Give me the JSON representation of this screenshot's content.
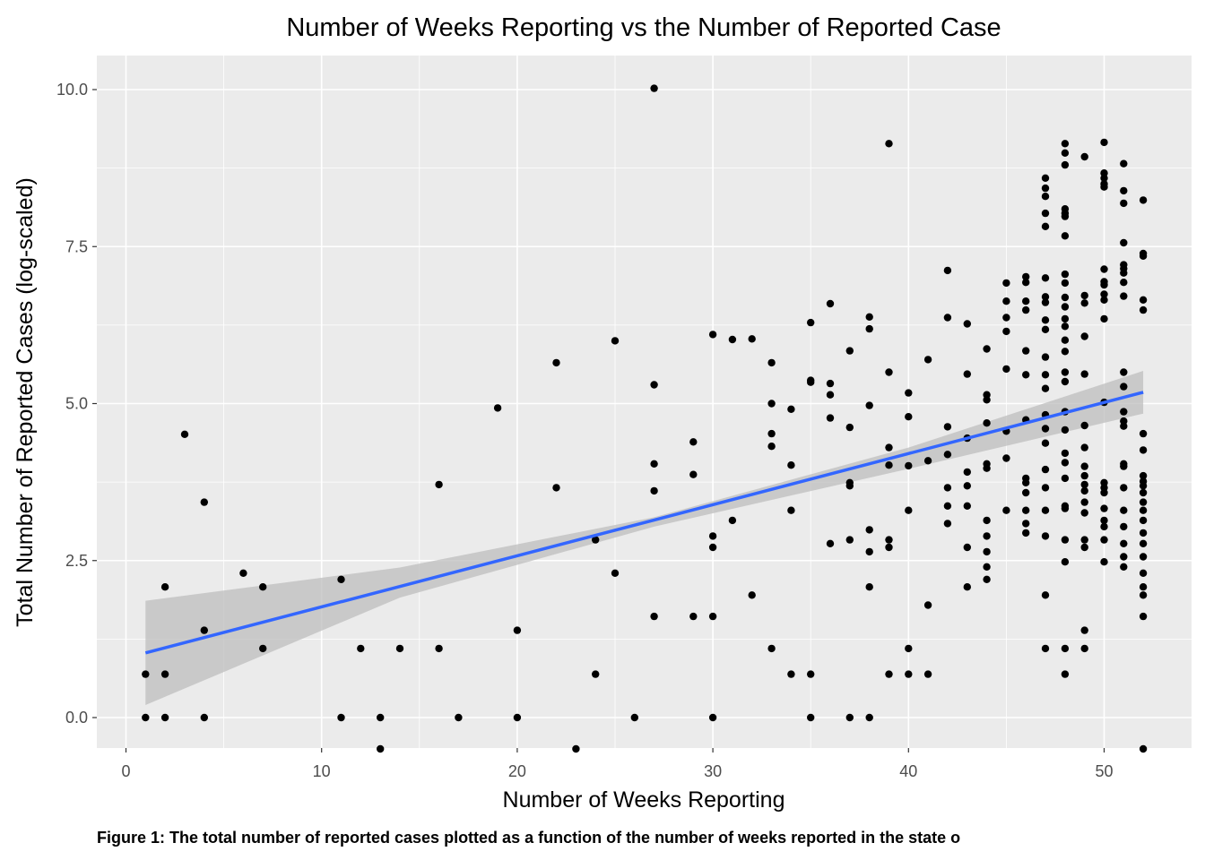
{
  "chart_data": {
    "type": "scatter",
    "title": "Number of Weeks Reporting vs the Number of Reported Case",
    "xlabel": "Number of Weeks Reporting",
    "ylabel": "Total Number of Reported Cases (log-scaled)",
    "caption": "Figure 1: The total number of reported cases plotted as a function of the number of weeks reported in the state o",
    "xlim": [
      -1.5,
      54.5
    ],
    "ylim": [
      -0.5,
      10.5
    ],
    "xticks": [
      0,
      10,
      20,
      30,
      40,
      50
    ],
    "xtick_labels": [
      "0",
      "10",
      "20",
      "30",
      "40",
      "50"
    ],
    "yticks": [
      0,
      2.5,
      5,
      7.5,
      10
    ],
    "ytick_labels": [
      "0.0",
      "2.5",
      "5.0",
      "7.5",
      "10.0"
    ],
    "grid": true,
    "legend": "none",
    "colors": {
      "panel": "#ebebeb",
      "grid": "#ffffff",
      "points": "#000000",
      "fit_line": "#3366ff",
      "confidence_band": "#bdbdbd"
    },
    "points": [
      [
        1,
        0.69
      ],
      [
        1,
        0
      ],
      [
        2,
        2.08
      ],
      [
        2,
        0.69
      ],
      [
        2,
        0
      ],
      [
        3,
        4.51
      ],
      [
        4,
        3.43
      ],
      [
        4,
        1.39
      ],
      [
        4,
        0
      ],
      [
        6,
        2.3
      ],
      [
        7,
        2.08
      ],
      [
        7,
        1.1
      ],
      [
        11,
        2.2
      ],
      [
        11,
        0
      ],
      [
        12,
        1.1
      ],
      [
        13,
        0
      ],
      [
        13,
        -0.5
      ],
      [
        14,
        1.1
      ],
      [
        16,
        3.71
      ],
      [
        16,
        1.1
      ],
      [
        17,
        0
      ],
      [
        19,
        4.93
      ],
      [
        20,
        1.39
      ],
      [
        20,
        0
      ],
      [
        22,
        5.65
      ],
      [
        22,
        3.66
      ],
      [
        23,
        -0.5
      ],
      [
        24,
        2.83
      ],
      [
        24,
        0.69
      ],
      [
        25,
        6
      ],
      [
        25,
        2.3
      ],
      [
        26,
        0
      ],
      [
        27,
        10.02
      ],
      [
        27,
        5.3
      ],
      [
        27,
        4.04
      ],
      [
        27,
        3.61
      ],
      [
        27,
        1.61
      ],
      [
        29,
        4.39
      ],
      [
        29,
        3.87
      ],
      [
        29,
        1.61
      ],
      [
        30,
        6.1
      ],
      [
        30,
        2.89
      ],
      [
        30,
        2.71
      ],
      [
        30,
        1.61
      ],
      [
        30,
        0
      ],
      [
        31,
        6.02
      ],
      [
        31,
        3.14
      ],
      [
        32,
        6.03
      ],
      [
        32,
        1.95
      ],
      [
        33,
        5.65
      ],
      [
        33,
        5
      ],
      [
        33,
        4.52
      ],
      [
        33,
        4.32
      ],
      [
        33,
        1.1
      ],
      [
        34,
        4.91
      ],
      [
        34,
        4.02
      ],
      [
        34,
        3.3
      ],
      [
        34,
        0.69
      ],
      [
        35,
        6.29
      ],
      [
        35,
        5.37
      ],
      [
        35,
        5.34
      ],
      [
        35,
        0.69
      ],
      [
        35,
        0
      ],
      [
        36,
        6.59
      ],
      [
        36,
        5.32
      ],
      [
        36,
        5.14
      ],
      [
        36,
        4.77
      ],
      [
        36,
        2.77
      ],
      [
        37,
        5.84
      ],
      [
        37,
        4.62
      ],
      [
        37,
        3.74
      ],
      [
        37,
        3.69
      ],
      [
        37,
        2.83
      ],
      [
        37,
        0
      ],
      [
        38,
        6.38
      ],
      [
        38,
        6.19
      ],
      [
        38,
        4.97
      ],
      [
        38,
        2.99
      ],
      [
        38,
        2.64
      ],
      [
        38,
        2.08
      ],
      [
        38,
        0
      ],
      [
        39,
        9.14
      ],
      [
        39,
        5.5
      ],
      [
        39,
        4.3
      ],
      [
        39,
        4.02
      ],
      [
        39,
        2.83
      ],
      [
        39,
        2.71
      ],
      [
        39,
        0.69
      ],
      [
        40,
        5.17
      ],
      [
        40,
        4.79
      ],
      [
        40,
        4.01
      ],
      [
        40,
        3.3
      ],
      [
        40,
        1.1
      ],
      [
        40,
        0.69
      ],
      [
        41,
        5.7
      ],
      [
        41,
        4.09
      ],
      [
        41,
        1.79
      ],
      [
        41,
        0.69
      ],
      [
        42,
        7.12
      ],
      [
        42,
        6.37
      ],
      [
        42,
        4.63
      ],
      [
        42,
        4.19
      ],
      [
        42,
        3.66
      ],
      [
        42,
        3.37
      ],
      [
        42,
        3.09
      ],
      [
        43,
        6.27
      ],
      [
        43,
        5.47
      ],
      [
        43,
        4.45
      ],
      [
        43,
        3.91
      ],
      [
        43,
        3.69
      ],
      [
        43,
        3.37
      ],
      [
        43,
        2.71
      ],
      [
        43,
        2.08
      ],
      [
        44,
        5.87
      ],
      [
        44,
        5.14
      ],
      [
        44,
        5.06
      ],
      [
        44,
        4.69
      ],
      [
        44,
        4.04
      ],
      [
        44,
        3.97
      ],
      [
        44,
        3.14
      ],
      [
        44,
        2.89
      ],
      [
        44,
        2.64
      ],
      [
        44,
        2.4
      ],
      [
        44,
        2.2
      ],
      [
        45,
        6.92
      ],
      [
        45,
        6.63
      ],
      [
        45,
        6.37
      ],
      [
        45,
        6.15
      ],
      [
        45,
        5.55
      ],
      [
        45,
        4.56
      ],
      [
        45,
        4.13
      ],
      [
        45,
        3.3
      ],
      [
        46,
        7.02
      ],
      [
        46,
        6.93
      ],
      [
        46,
        6.63
      ],
      [
        46,
        6.49
      ],
      [
        46,
        5.84
      ],
      [
        46,
        5.46
      ],
      [
        46,
        4.74
      ],
      [
        46,
        3.81
      ],
      [
        46,
        3.74
      ],
      [
        46,
        3.58
      ],
      [
        46,
        3.3
      ],
      [
        46,
        3.09
      ],
      [
        46,
        2.94
      ],
      [
        47,
        8.59
      ],
      [
        47,
        8.43
      ],
      [
        47,
        8.3
      ],
      [
        47,
        8.03
      ],
      [
        47,
        7.82
      ],
      [
        47,
        7
      ],
      [
        47,
        6.7
      ],
      [
        47,
        6.61
      ],
      [
        47,
        6.33
      ],
      [
        47,
        6.18
      ],
      [
        47,
        5.74
      ],
      [
        47,
        5.46
      ],
      [
        47,
        5.24
      ],
      [
        47,
        4.82
      ],
      [
        47,
        4.6
      ],
      [
        47,
        4.37
      ],
      [
        47,
        3.95
      ],
      [
        47,
        3.66
      ],
      [
        47,
        3.3
      ],
      [
        47,
        2.89
      ],
      [
        47,
        1.95
      ],
      [
        47,
        1.1
      ],
      [
        48,
        9.14
      ],
      [
        48,
        8.99
      ],
      [
        48,
        8.8
      ],
      [
        48,
        8.1
      ],
      [
        48,
        8.03
      ],
      [
        48,
        7.98
      ],
      [
        48,
        7.67
      ],
      [
        48,
        7.06
      ],
      [
        48,
        6.92
      ],
      [
        48,
        6.69
      ],
      [
        48,
        6.54
      ],
      [
        48,
        6.35
      ],
      [
        48,
        6.23
      ],
      [
        48,
        6.01
      ],
      [
        48,
        5.83
      ],
      [
        48,
        5.5
      ],
      [
        48,
        5.35
      ],
      [
        48,
        4.87
      ],
      [
        48,
        4.58
      ],
      [
        48,
        4.21
      ],
      [
        48,
        4.06
      ],
      [
        48,
        3.81
      ],
      [
        48,
        3.37
      ],
      [
        48,
        3.33
      ],
      [
        48,
        2.83
      ],
      [
        48,
        2.48
      ],
      [
        48,
        1.1
      ],
      [
        48,
        0.69
      ],
      [
        49,
        8.93
      ],
      [
        49,
        6.72
      ],
      [
        49,
        6.6
      ],
      [
        49,
        6.07
      ],
      [
        49,
        5.47
      ],
      [
        49,
        4.65
      ],
      [
        49,
        4.3
      ],
      [
        49,
        4
      ],
      [
        49,
        3.85
      ],
      [
        49,
        3.71
      ],
      [
        49,
        3.61
      ],
      [
        49,
        3.43
      ],
      [
        49,
        3.26
      ],
      [
        49,
        2.83
      ],
      [
        49,
        2.71
      ],
      [
        49,
        1.39
      ],
      [
        49,
        1.1
      ],
      [
        50,
        9.16
      ],
      [
        50,
        8.67
      ],
      [
        50,
        8.59
      ],
      [
        50,
        8.5
      ],
      [
        50,
        8.45
      ],
      [
        50,
        7.14
      ],
      [
        50,
        6.94
      ],
      [
        50,
        6.89
      ],
      [
        50,
        6.74
      ],
      [
        50,
        6.65
      ],
      [
        50,
        6.35
      ],
      [
        50,
        5.02
      ],
      [
        50,
        3.74
      ],
      [
        50,
        3.66
      ],
      [
        50,
        3.58
      ],
      [
        50,
        3.33
      ],
      [
        50,
        3.14
      ],
      [
        50,
        3.04
      ],
      [
        50,
        2.83
      ],
      [
        50,
        2.48
      ],
      [
        51,
        8.82
      ],
      [
        51,
        8.39
      ],
      [
        51,
        8.19
      ],
      [
        51,
        7.56
      ],
      [
        51,
        7.21
      ],
      [
        51,
        7.15
      ],
      [
        51,
        7.08
      ],
      [
        51,
        6.93
      ],
      [
        51,
        6.71
      ],
      [
        51,
        5.5
      ],
      [
        51,
        5.27
      ],
      [
        51,
        4.87
      ],
      [
        51,
        4.72
      ],
      [
        51,
        4.64
      ],
      [
        51,
        4.04
      ],
      [
        51,
        4
      ],
      [
        51,
        3.66
      ],
      [
        51,
        3.3
      ],
      [
        51,
        3.04
      ],
      [
        51,
        2.77
      ],
      [
        51,
        2.56
      ],
      [
        51,
        2.4
      ],
      [
        52,
        8.24
      ],
      [
        52,
        7.39
      ],
      [
        52,
        7.35
      ],
      [
        52,
        6.65
      ],
      [
        52,
        6.49
      ],
      [
        52,
        4.52
      ],
      [
        52,
        4.26
      ],
      [
        52,
        3.85
      ],
      [
        52,
        3.76
      ],
      [
        52,
        3.69
      ],
      [
        52,
        3.58
      ],
      [
        52,
        3.43
      ],
      [
        52,
        3.3
      ],
      [
        52,
        3.14
      ],
      [
        52,
        2.94
      ],
      [
        52,
        2.77
      ],
      [
        52,
        2.56
      ],
      [
        52,
        2.3
      ],
      [
        52,
        2.08
      ],
      [
        52,
        1.95
      ],
      [
        52,
        1.61
      ],
      [
        52,
        -0.5
      ]
    ],
    "fit_line": {
      "x": [
        1,
        52
      ],
      "y": [
        1.03,
        5.18
      ]
    },
    "confidence_band": {
      "x": [
        1,
        14,
        27,
        40,
        52
      ],
      "lower": [
        0.2,
        1.91,
        3.04,
        3.96,
        4.84
      ],
      "upper": [
        1.86,
        2.39,
        3.19,
        4.3,
        5.52
      ]
    }
  }
}
